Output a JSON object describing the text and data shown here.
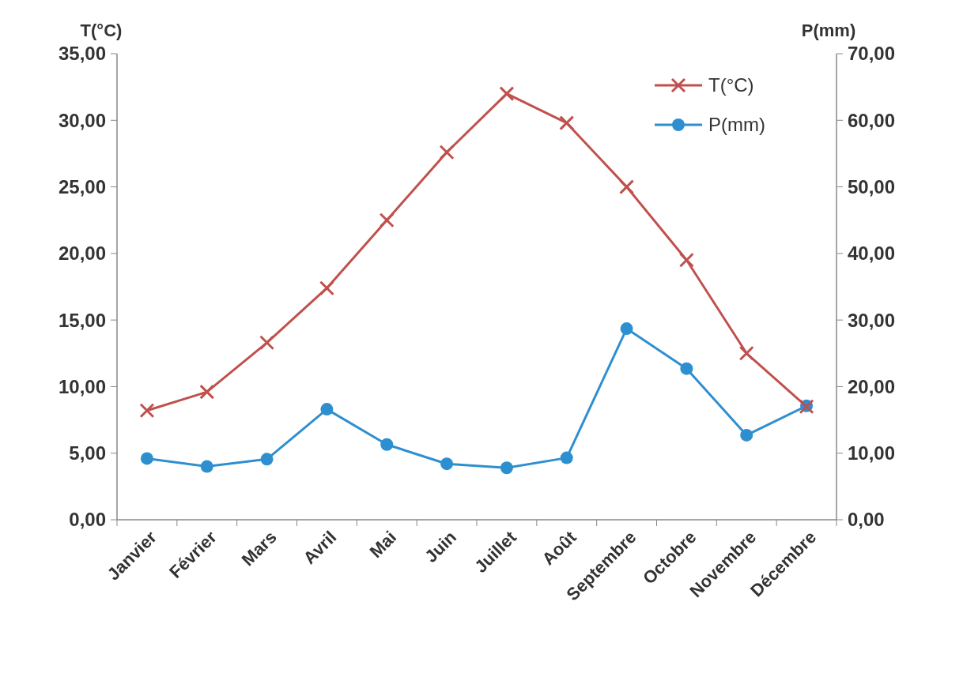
{
  "chart_data": {
    "type": "line",
    "ylabel": "T(°C)",
    "y2label": "P(mm)",
    "categories": [
      "Janvier",
      "Février",
      "Mars",
      "Avril",
      "Mai",
      "Juin",
      "Juillet",
      "Août",
      "Septembre",
      "Octobre",
      "Novembre",
      "Décembre"
    ],
    "series": [
      {
        "name": "T(°C)",
        "color": "#c0504d",
        "marker": "cross",
        "values": [
          8.2,
          9.6,
          13.3,
          17.4,
          22.5,
          27.6,
          32.0,
          29.8,
          25.0,
          19.5,
          12.5,
          8.5
        ]
      },
      {
        "name": "P(mm)",
        "color": "#2e8fd0",
        "marker": "circle",
        "axis": "y2",
        "values": [
          9.2,
          8.0,
          9.1,
          16.6,
          11.3,
          8.4,
          7.8,
          9.3,
          28.7,
          22.7,
          12.7,
          17.1
        ]
      }
    ],
    "ylim": [
      0,
      35
    ],
    "yticks": [
      {
        "value": 0,
        "label": "0,00"
      },
      {
        "value": 5,
        "label": "5,00"
      },
      {
        "value": 10,
        "label": "10,00"
      },
      {
        "value": 15,
        "label": "15,00"
      },
      {
        "value": 20,
        "label": "20,00"
      },
      {
        "value": 25,
        "label": "25,00"
      },
      {
        "value": 30,
        "label": "30,00"
      },
      {
        "value": 35,
        "label": "35,00"
      }
    ],
    "y2lim": [
      0,
      70
    ],
    "y2ticks": [
      {
        "value": 0,
        "label": "0,00"
      },
      {
        "value": 10,
        "label": "10,00"
      },
      {
        "value": 20,
        "label": "20,00"
      },
      {
        "value": 30,
        "label": "30,00"
      },
      {
        "value": 40,
        "label": "40,00"
      },
      {
        "value": 50,
        "label": "50,00"
      },
      {
        "value": 60,
        "label": "60,00"
      },
      {
        "value": 70,
        "label": "70,00"
      }
    ],
    "legend": "top right",
    "grid": false,
    "line_style": "solid"
  }
}
